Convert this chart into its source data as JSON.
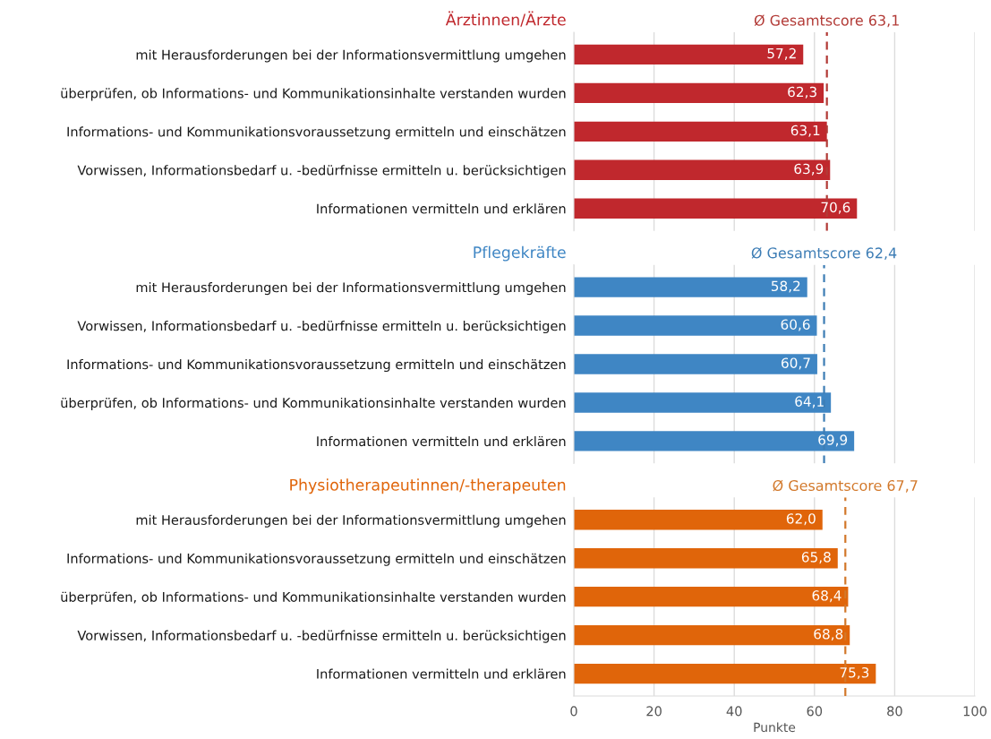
{
  "chart_data": [
    {
      "type": "bar",
      "orientation": "horizontal",
      "title": "Ärztinnen/Ärzte",
      "color": "#c0282d",
      "categories": [
        "mit Herausforderungen bei der Informationsvermittlung umgehen",
        "überprüfen, ob Informations- und Kommunikationsinhalte verstanden wurden",
        "Informations- und Kommunikationsvoraussetzung ermitteln und einschätzen",
        "Vorwissen, Informationsbedarf u. -bedürfnisse ermitteln u. berücksichtigen",
        "Informationen vermitteln und erklären"
      ],
      "values": [
        57.2,
        62.3,
        63.1,
        63.9,
        70.6
      ],
      "value_labels": [
        "57,2",
        "62,3",
        "63,1",
        "63,9",
        "70,6"
      ],
      "ref_lines": [
        {
          "axis": "x",
          "value": 63.1,
          "label": "Ø Gesamtscore 63,1",
          "color": "#b23a36",
          "line_style": "dashed"
        }
      ],
      "xlim": [
        0,
        100
      ],
      "xticks": [
        0,
        20,
        40,
        60,
        80,
        100
      ],
      "grid": "x",
      "tick_labels": "y"
    },
    {
      "type": "bar",
      "orientation": "horizontal",
      "title": "Pflegekräfte",
      "color": "#3f86c4",
      "categories": [
        "mit Herausforderungen bei der Informationsvermittlung umgehen",
        "Vorwissen, Informationsbedarf u. -bedürfnisse ermitteln u. berücksichtigen",
        "Informations- und Kommunikationsvoraussetzung ermitteln und einschätzen",
        "überprüfen, ob Informations- und Kommunikationsinhalte verstanden wurden",
        "Informationen vermitteln und erklären"
      ],
      "values": [
        58.2,
        60.6,
        60.7,
        64.1,
        69.9
      ],
      "value_labels": [
        "58,2",
        "60,6",
        "60,7",
        "64,1",
        "69,9"
      ],
      "ref_lines": [
        {
          "axis": "x",
          "value": 62.4,
          "label": "Ø Gesamtscore 62,4",
          "color": "#3d7db5",
          "line_style": "dashed"
        }
      ],
      "xlim": [
        0,
        100
      ],
      "xticks": [
        0,
        20,
        40,
        60,
        80,
        100
      ],
      "grid": "x",
      "tick_labels": "y"
    },
    {
      "type": "bar",
      "orientation": "horizontal",
      "title": "Physiotherapeutinnen/-therapeuten",
      "color": "#e0650a",
      "xlabel": "Punkte",
      "categories": [
        "mit Herausforderungen bei der Informationsvermittlung umgehen",
        "Informations- und Kommunikationsvoraussetzung ermitteln und einschätzen",
        "überprüfen, ob Informations- und Kommunikationsinhalte verstanden wurden",
        "Vorwissen, Informationsbedarf u. -bedürfnisse ermitteln u. berücksichtigen",
        "Informationen vermitteln und erklären"
      ],
      "values": [
        62.0,
        65.8,
        68.4,
        68.8,
        75.3
      ],
      "value_labels": [
        "62,0",
        "65,8",
        "68,4",
        "68,8",
        "75,3"
      ],
      "ref_lines": [
        {
          "axis": "x",
          "value": 67.7,
          "label": "Ø Gesamtscore 67,7",
          "color": "#d2782a",
          "line_style": "dashed"
        }
      ],
      "xlim": [
        0,
        100
      ],
      "xticks": [
        0,
        20,
        40,
        60,
        80,
        100
      ],
      "grid": "x"
    }
  ]
}
